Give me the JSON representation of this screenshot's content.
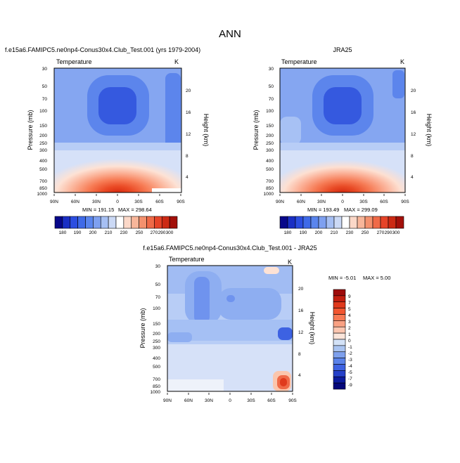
{
  "figure": {
    "title": "ANN"
  },
  "chart_data": [
    {
      "type": "heatmap",
      "title": "f.e15a6.FAMIPC5.ne0np4-Conus30x4.Club_Test.001 (yrs 1979-2004)",
      "subtitle": "Temperature",
      "units": "K",
      "xlabel": "",
      "ylabel": "Pressure (mb)",
      "ylabel_right": "Height (km)",
      "x_ticks": [
        "90N",
        "60N",
        "30N",
        "0",
        "30S",
        "60S",
        "90S"
      ],
      "y_ticks": [
        "30",
        "50",
        "70",
        "100",
        "150",
        "200",
        "250",
        "300",
        "400",
        "500",
        "700",
        "850",
        "1000"
      ],
      "y_right_ticks": [
        "20",
        "16",
        "12",
        "8",
        "4"
      ],
      "min_label": "MIN = 191.15",
      "max_label": "MAX = 298.64",
      "min": 191.15,
      "max": 298.64,
      "contour_levels": [
        180,
        190,
        200,
        210,
        220,
        230,
        240,
        250,
        260,
        270,
        280,
        290,
        300
      ]
    },
    {
      "type": "heatmap",
      "title": "JRA25",
      "subtitle": "Temperature",
      "units": "K",
      "xlabel": "",
      "ylabel": "Pressure (mb)",
      "ylabel_right": "Height (km)",
      "x_ticks": [
        "90N",
        "60N",
        "30N",
        "0",
        "30S",
        "60S",
        "90S"
      ],
      "y_ticks": [
        "30",
        "50",
        "70",
        "100",
        "150",
        "200",
        "250",
        "300",
        "400",
        "500",
        "700",
        "850",
        "1000"
      ],
      "y_right_ticks": [
        "20",
        "16",
        "12",
        "8",
        "4"
      ],
      "min_label": "MIN = 193.49",
      "max_label": "MAX = 299.09",
      "min": 193.49,
      "max": 299.09,
      "contour_levels": [
        180,
        190,
        200,
        210,
        220,
        230,
        240,
        250,
        260,
        270,
        280,
        290,
        300
      ]
    },
    {
      "type": "heatmap",
      "title": "f.e15a6.FAMIPC5.ne0np4-Conus30x4.Club_Test.001 - JRA25",
      "subtitle": "Temperature",
      "units": "K",
      "xlabel": "",
      "ylabel": "Pressure (mb)",
      "ylabel_right": "Height (km)",
      "x_ticks": [
        "90N",
        "60N",
        "30N",
        "0",
        "30S",
        "60S",
        "90S"
      ],
      "y_ticks": [
        "30",
        "50",
        "70",
        "100",
        "150",
        "200",
        "250",
        "300",
        "400",
        "500",
        "700",
        "850",
        "1000"
      ],
      "y_right_ticks": [
        "20",
        "16",
        "12",
        "8",
        "4"
      ],
      "min_label": "MIN =  -5.01",
      "max_label": "MAX =   5.00",
      "min": -5.01,
      "max": 5.0,
      "contour_levels": [
        -9,
        -7,
        -5,
        -4,
        -3,
        -2,
        -1,
        0,
        1,
        2,
        3,
        4,
        5,
        7,
        9
      ]
    }
  ],
  "colorbar_top": {
    "labels": [
      "180",
      "190",
      "200",
      "210",
      "230",
      "250",
      "270",
      "290",
      "300"
    ],
    "colors": [
      "#08088a",
      "#1a2fc4",
      "#2c4ee0",
      "#3f6ae8",
      "#5a85ee",
      "#7ea0f0",
      "#a6bff3",
      "#cbd9f5",
      "#ffffff",
      "#fbd8c8",
      "#f8b69a",
      "#f4916e",
      "#ef6a48",
      "#e64428",
      "#cc2a14",
      "#a3100a"
    ]
  },
  "colorbar_diff": {
    "labels": [
      "9",
      "7",
      "5",
      "4",
      "3",
      "2",
      "1",
      "0",
      "-1",
      "-2",
      "-3",
      "-4",
      "-5",
      "-7",
      "-9"
    ],
    "colors": [
      "#9e0b0b",
      "#c21e10",
      "#e0391c",
      "#f25630",
      "#f77a55",
      "#f9a183",
      "#fcc6b0",
      "#fbe5da",
      "#d3e2f7",
      "#aac4f1",
      "#7ea0ed",
      "#5a82ea",
      "#3d62e2",
      "#2540c9",
      "#0c1b9e",
      "#05087a"
    ]
  }
}
